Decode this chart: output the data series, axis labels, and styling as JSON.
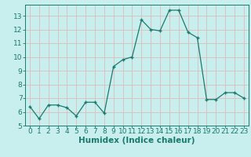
{
  "x": [
    0,
    1,
    2,
    3,
    4,
    5,
    6,
    7,
    8,
    9,
    10,
    11,
    12,
    13,
    14,
    15,
    16,
    17,
    18,
    19,
    20,
    21,
    22,
    23
  ],
  "y": [
    6.4,
    5.5,
    6.5,
    6.5,
    6.3,
    5.7,
    6.7,
    6.7,
    5.9,
    9.3,
    9.8,
    10.0,
    12.7,
    12.0,
    11.9,
    13.4,
    13.4,
    11.8,
    11.4,
    6.9,
    6.9,
    7.4,
    7.4,
    7.0
  ],
  "xlabel": "Humidex (Indice chaleur)",
  "ylim": [
    5,
    13.8
  ],
  "xlim": [
    -0.5,
    23.5
  ],
  "yticks": [
    5,
    6,
    7,
    8,
    9,
    10,
    11,
    12,
    13
  ],
  "xticks": [
    0,
    1,
    2,
    3,
    4,
    5,
    6,
    7,
    8,
    9,
    10,
    11,
    12,
    13,
    14,
    15,
    16,
    17,
    18,
    19,
    20,
    21,
    22,
    23
  ],
  "line_color": "#1a7a6e",
  "marker_color": "#1a7a6e",
  "bg_color": "#c8eeee",
  "grid_color": "#ddbcbc",
  "axis_color": "#1a7a6e",
  "tick_label_color": "#1a7a6e",
  "xlabel_color": "#1a7a6e",
  "xlabel_fontsize": 7.5,
  "tick_fontsize": 6.5
}
